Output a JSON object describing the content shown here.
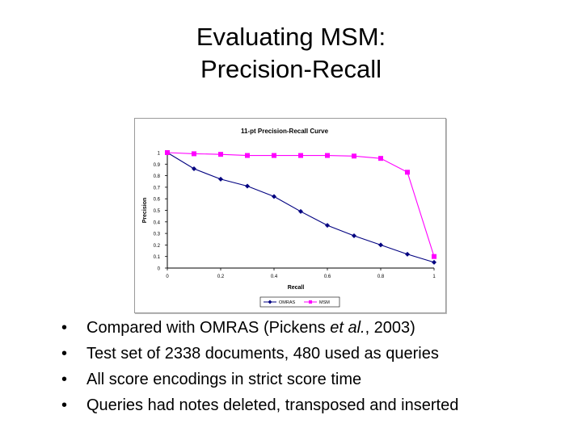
{
  "slide": {
    "title_line1": "Evaluating MSM:",
    "title_line2": "Precision-Recall"
  },
  "bullets": {
    "b1_pre": "Compared with OMRAS (Pickens ",
    "b1_em": "et al.",
    "b1_post": ", 2003)",
    "b2": "Test set of 2338 documents, 480 used as queries",
    "b3": "All score encodings in strict score time",
    "b4": "Queries had notes deleted, transposed and inserted",
    "bullet_char": "•"
  },
  "chart_data": {
    "type": "line",
    "title": "11-pt Precision-Recall Curve",
    "xlabel": "Recall",
    "ylabel": "Precision",
    "xlim": [
      0,
      1
    ],
    "ylim": [
      0,
      1
    ],
    "x": [
      0,
      0.1,
      0.2,
      0.3,
      0.4,
      0.5,
      0.6,
      0.7,
      0.8,
      0.9,
      1.0
    ],
    "xticks": [
      "0",
      "0.2",
      "0.4",
      "0.6",
      "0.8",
      "1"
    ],
    "yticks": [
      "0",
      "0.1",
      "0.2",
      "0.3",
      "0.4",
      "0.5",
      "0.6",
      "0.7",
      "0.8",
      "0.9",
      "1"
    ],
    "series": [
      {
        "name": "OMRAS",
        "color": "#000080",
        "marker": "diamond",
        "values": [
          1.0,
          0.86,
          0.77,
          0.71,
          0.62,
          0.49,
          0.37,
          0.28,
          0.2,
          0.12,
          0.05
        ]
      },
      {
        "name": "MSM",
        "color": "#ff00ff",
        "marker": "square",
        "values": [
          1.0,
          0.99,
          0.985,
          0.975,
          0.975,
          0.975,
          0.975,
          0.97,
          0.95,
          0.83,
          0.1
        ]
      }
    ],
    "legend": "bottom",
    "grid": false
  }
}
